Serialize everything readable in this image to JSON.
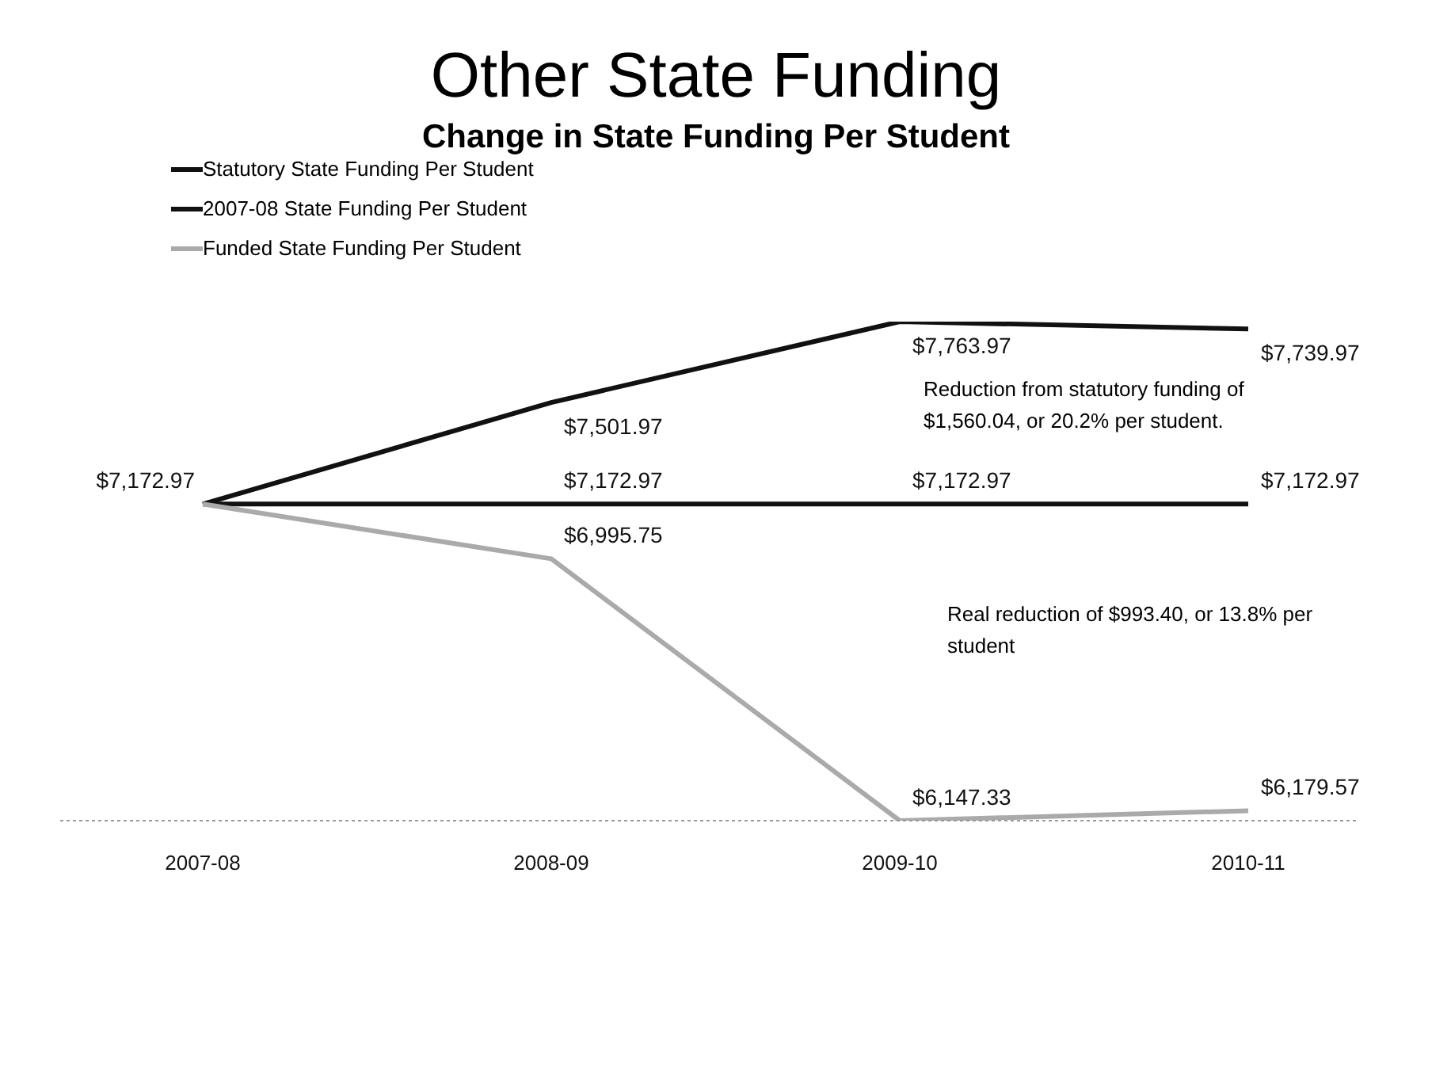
{
  "chart_data": {
    "type": "line",
    "title": "Other State Funding",
    "subtitle": "Change in State Funding Per Student",
    "categories": [
      "2007-08",
      "2008-09",
      "2009-10",
      "2010-11"
    ],
    "series": [
      {
        "name": "Statutory State Funding Per Student",
        "color": "#111111",
        "values": [
          7172.97,
          7501.97,
          7763.97,
          7739.97
        ],
        "value_labels": [
          "$7,172.97",
          "$7,501.97",
          "$7,763.97",
          "$7,739.97"
        ]
      },
      {
        "name": "2007-08 State Funding Per Student",
        "color": "#111111",
        "values": [
          7172.97,
          7172.97,
          7172.97,
          7172.97
        ],
        "value_labels": [
          null,
          "$7,172.97",
          "$7,172.97",
          "$7,172.97"
        ]
      },
      {
        "name": "Funded State Funding Per Student",
        "color": "#aaaaaa",
        "values": [
          7172.97,
          6995.75,
          6147.33,
          6179.57
        ],
        "value_labels": [
          null,
          "$6,995.75",
          "$6,147.33",
          "$6,179.57"
        ]
      }
    ],
    "legend": "top left",
    "marker": "none",
    "line_style": "solid",
    "annotations": [
      "Reduction from statutory funding of $1,560.04, or 20.2% per student.",
      "Real reduction of $993.40, or 13.8% per student"
    ]
  }
}
